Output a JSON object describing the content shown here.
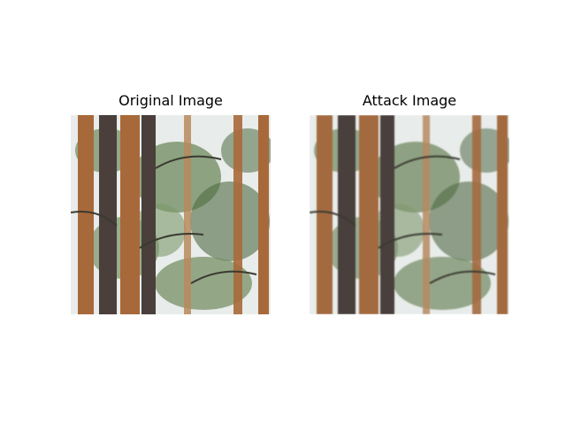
{
  "figure": {
    "panels": [
      {
        "title": "Original Image"
      },
      {
        "title": "Attack Image"
      }
    ],
    "colors": {
      "sky": "#e8ecea",
      "foliage": "#6f8a5c",
      "foliage_dark": "#4f6b41",
      "bark_orange": "#a8693a",
      "bark_dark": "#4a3f3b",
      "bark_light": "#b98a5c"
    }
  }
}
